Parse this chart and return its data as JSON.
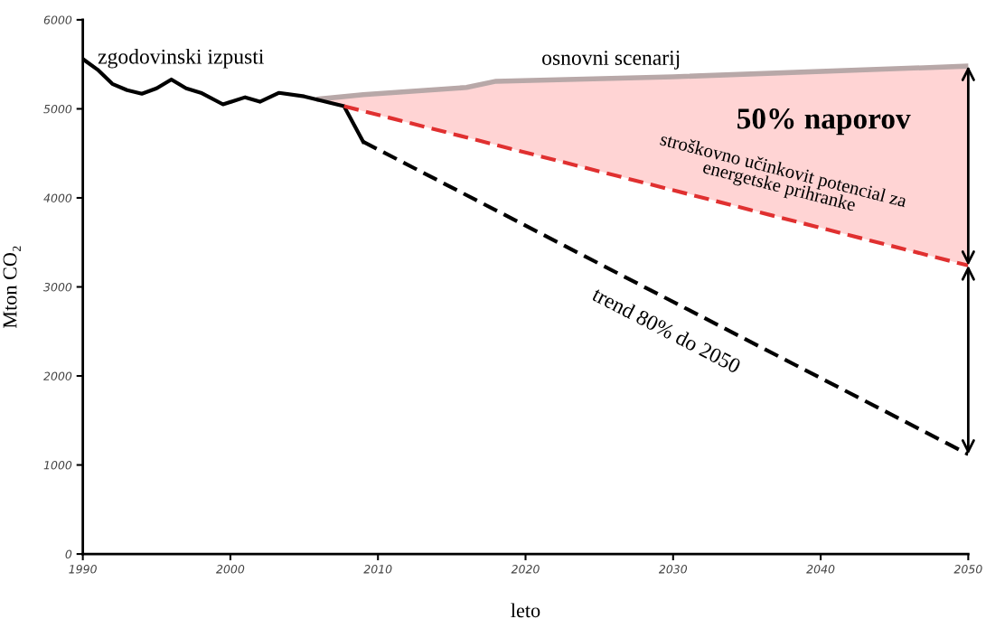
{
  "chart_data": {
    "type": "line",
    "xlabel": "leto",
    "ylabel": "Mton CO₂",
    "xlim": [
      1990,
      2050
    ],
    "xticks": [
      1990,
      2000,
      2010,
      2020,
      2030,
      2040,
      2050
    ],
    "ylim": [
      0,
      6000
    ],
    "yticks": [
      0,
      1000,
      2000,
      3000,
      4000,
      5000,
      6000
    ],
    "grid": false,
    "legend": false,
    "marker": "none",
    "series": [
      {
        "name": "zgodovinski izpusti",
        "color": "#000000",
        "line_style": "solid",
        "x": [
          1990,
          1991,
          1992,
          1993,
          1994,
          1995,
          1996,
          1997,
          1998,
          1999.5,
          2001,
          2002,
          2003.3,
          2005,
          2007.7,
          2009
        ],
        "values": [
          5560,
          5440,
          5280,
          5210,
          5170,
          5230,
          5330,
          5230,
          5180,
          5050,
          5130,
          5080,
          5180,
          5140,
          5030,
          4630
        ]
      },
      {
        "name": "osnovni scenarij",
        "color": "#b8a8a8",
        "line_style": "solid",
        "x": [
          2006,
          2009,
          2016,
          2018,
          2030,
          2050
        ],
        "values": [
          5110,
          5160,
          5240,
          5310,
          5360,
          5480
        ],
        "lower": [
          5110,
          4975,
          4680,
          4595,
          4090,
          3240
        ],
        "upper": [
          5110,
          5160,
          5240,
          5310,
          5360,
          5480
        ]
      },
      {
        "name": "stroškovno učinkovit potencial za energetske prihranke",
        "color": "#e03030",
        "line_style": "dashed",
        "x": [
          2007.7,
          2050
        ],
        "values": [
          5030,
          3240
        ]
      },
      {
        "name": "trend 80% do 2050",
        "color": "#000000",
        "line_style": "dashed",
        "x": [
          2009,
          2050
        ],
        "values": [
          4630,
          1120
        ]
      }
    ],
    "annotations": [
      "50% naporov"
    ]
  }
}
